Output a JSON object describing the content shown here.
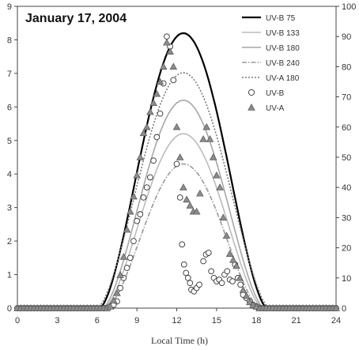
{
  "chart_data": {
    "type": "line",
    "title": "January 17, 2004",
    "xlabel": "Local Time (h)",
    "ylabel": "",
    "xlim": [
      0,
      24
    ],
    "ylim_left": [
      0,
      9
    ],
    "ylim_right": [
      0,
      100
    ],
    "xticks": [
      "0",
      "3",
      "6",
      "9",
      "12",
      "15",
      "18",
      "21",
      "24"
    ],
    "yticks_left": [
      "0",
      "1",
      "2",
      "3",
      "4",
      "5",
      "6",
      "7",
      "8",
      "9"
    ],
    "yticks_right": [
      "0",
      "10",
      "20",
      "30",
      "40",
      "50",
      "60",
      "70",
      "80",
      "90",
      "100"
    ],
    "grid": false,
    "legend_position": "top-right",
    "series": [
      {
        "name": "UV-B 75",
        "kind": "line",
        "axis": "left",
        "style": "solid",
        "color": "#000000",
        "peak": 8.2,
        "center": 12.5,
        "start": 6.2,
        "end": 18.8
      },
      {
        "name": "UV-B 133",
        "kind": "line",
        "axis": "left",
        "style": "solid",
        "color": "#bbbbbb",
        "peak": 5.2,
        "center": 12.5,
        "start": 6.5,
        "end": 18.5
      },
      {
        "name": "UV-B 180",
        "kind": "line",
        "axis": "left",
        "style": "solid",
        "color": "#a6a6a6",
        "peak": 6.2,
        "center": 12.5,
        "start": 6.4,
        "end": 18.6
      },
      {
        "name": "UV-B 240",
        "kind": "line",
        "axis": "left",
        "style": "dashdot",
        "color": "#999999",
        "peak": 4.3,
        "center": 12.5,
        "start": 6.7,
        "end": 18.3
      },
      {
        "name": "UV-A 180",
        "kind": "line",
        "axis": "right",
        "style": "dotted",
        "color": "#7a7a7a",
        "peak": 78,
        "center": 12.5,
        "start": 6.0,
        "end": 19.0
      },
      {
        "name": "UV-B",
        "kind": "scatter",
        "axis": "left",
        "marker": "circle",
        "points": [
          [
            0,
            0
          ],
          [
            0.25,
            0
          ],
          [
            0.5,
            0
          ],
          [
            0.75,
            0
          ],
          [
            1,
            0
          ],
          [
            1.25,
            0
          ],
          [
            1.5,
            0
          ],
          [
            1.75,
            0
          ],
          [
            2,
            0
          ],
          [
            2.25,
            0
          ],
          [
            2.5,
            0
          ],
          [
            2.75,
            0
          ],
          [
            3,
            0
          ],
          [
            3.25,
            0
          ],
          [
            3.5,
            0
          ],
          [
            3.75,
            0
          ],
          [
            4,
            0
          ],
          [
            4.25,
            0
          ],
          [
            4.5,
            0
          ],
          [
            4.75,
            0
          ],
          [
            5,
            0
          ],
          [
            5.25,
            0
          ],
          [
            5.5,
            0
          ],
          [
            5.75,
            0
          ],
          [
            6,
            0
          ],
          [
            6.25,
            0
          ],
          [
            6.5,
            0
          ],
          [
            6.75,
            0
          ],
          [
            7,
            0.05
          ],
          [
            7.25,
            0.1
          ],
          [
            7.5,
            0.2
          ],
          [
            7.75,
            0.6
          ],
          [
            8,
            0.9
          ],
          [
            8.25,
            1.2
          ],
          [
            8.5,
            1.5
          ],
          [
            8.75,
            2.0
          ],
          [
            9,
            2.6
          ],
          [
            9.25,
            2.8
          ],
          [
            9.5,
            3.3
          ],
          [
            9.75,
            3.6
          ],
          [
            10,
            3.9
          ],
          [
            10.25,
            4.4
          ],
          [
            10.5,
            5.1
          ],
          [
            10.75,
            5.8
          ],
          [
            11,
            6.7
          ],
          [
            11.25,
            8.1
          ],
          [
            11.5,
            7.8
          ],
          [
            11.75,
            6.8
          ],
          [
            12,
            4.3
          ],
          [
            12.25,
            3.3
          ],
          [
            12.4,
            1.9
          ],
          [
            12.55,
            1.3
          ],
          [
            12.7,
            1.05
          ],
          [
            12.85,
            0.9
          ],
          [
            13,
            0.75
          ],
          [
            13.1,
            0.55
          ],
          [
            13.3,
            0.5
          ],
          [
            13.5,
            0.6
          ],
          [
            13.7,
            0.7
          ],
          [
            14.0,
            1.4
          ],
          [
            14.2,
            1.6
          ],
          [
            14.4,
            1.65
          ],
          [
            14.6,
            1.1
          ],
          [
            14.8,
            0.9
          ],
          [
            15.0,
            0.8
          ],
          [
            15.2,
            0.85
          ],
          [
            15.4,
            0.75
          ],
          [
            15.6,
            1.0
          ],
          [
            15.8,
            1.1
          ],
          [
            16.0,
            0.85
          ],
          [
            16.2,
            0.8
          ],
          [
            16.4,
            1.3
          ],
          [
            16.6,
            0.9
          ],
          [
            16.8,
            0.7
          ],
          [
            17.0,
            0.4
          ],
          [
            17.25,
            0.3
          ],
          [
            17.5,
            0.2
          ],
          [
            17.75,
            0.1
          ],
          [
            18,
            0.05
          ],
          [
            18.25,
            0
          ],
          [
            18.5,
            0
          ],
          [
            18.75,
            0
          ],
          [
            19,
            0
          ],
          [
            19.25,
            0
          ],
          [
            19.5,
            0
          ],
          [
            19.75,
            0
          ],
          [
            20,
            0
          ],
          [
            20.25,
            0
          ],
          [
            20.5,
            0
          ],
          [
            20.75,
            0
          ],
          [
            21,
            0
          ],
          [
            21.25,
            0
          ],
          [
            21.5,
            0
          ],
          [
            21.75,
            0
          ],
          [
            22,
            0
          ],
          [
            22.25,
            0
          ],
          [
            22.5,
            0
          ],
          [
            22.75,
            0
          ],
          [
            23,
            0
          ],
          [
            23.25,
            0
          ],
          [
            23.5,
            0
          ],
          [
            23.75,
            0
          ],
          [
            24,
            0
          ]
        ]
      },
      {
        "name": "UV-A",
        "kind": "scatter",
        "axis": "right",
        "marker": "triangle",
        "points": [
          [
            0,
            0
          ],
          [
            0.25,
            0
          ],
          [
            0.5,
            0
          ],
          [
            0.75,
            0
          ],
          [
            1,
            0
          ],
          [
            1.25,
            0
          ],
          [
            1.5,
            0
          ],
          [
            1.75,
            0
          ],
          [
            2,
            0
          ],
          [
            2.25,
            0
          ],
          [
            2.5,
            0
          ],
          [
            2.75,
            0
          ],
          [
            3,
            0
          ],
          [
            3.25,
            0
          ],
          [
            3.5,
            0
          ],
          [
            3.75,
            0
          ],
          [
            4,
            0
          ],
          [
            4.25,
            0
          ],
          [
            4.5,
            0
          ],
          [
            4.75,
            0
          ],
          [
            5,
            0
          ],
          [
            5.25,
            0
          ],
          [
            5.5,
            0
          ],
          [
            5.75,
            0
          ],
          [
            6,
            0
          ],
          [
            6.25,
            0
          ],
          [
            6.5,
            0
          ],
          [
            6.75,
            0
          ],
          [
            7,
            0.5
          ],
          [
            7.25,
            2.5
          ],
          [
            7.5,
            5
          ],
          [
            7.75,
            11
          ],
          [
            8,
            17
          ],
          [
            8.25,
            26
          ],
          [
            8.5,
            32
          ],
          [
            8.75,
            37
          ],
          [
            9,
            44
          ],
          [
            9.25,
            50
          ],
          [
            9.5,
            58
          ],
          [
            9.75,
            60
          ],
          [
            10,
            65
          ],
          [
            10.25,
            68
          ],
          [
            10.5,
            71
          ],
          [
            10.75,
            75
          ],
          [
            11,
            80
          ],
          [
            11.25,
            88
          ],
          [
            11.5,
            85
          ],
          [
            11.75,
            80
          ],
          [
            12,
            60
          ],
          [
            12.25,
            50
          ],
          [
            12.5,
            40
          ],
          [
            12.75,
            36
          ],
          [
            13,
            34
          ],
          [
            13.25,
            32
          ],
          [
            13.5,
            32
          ],
          [
            13.75,
            38
          ],
          [
            14,
            56
          ],
          [
            14.25,
            60
          ],
          [
            14.5,
            56
          ],
          [
            14.75,
            50
          ],
          [
            15,
            44
          ],
          [
            15.25,
            40
          ],
          [
            15.5,
            30
          ],
          [
            15.75,
            24
          ],
          [
            16,
            18
          ],
          [
            16.25,
            16
          ],
          [
            16.5,
            14
          ],
          [
            16.75,
            10
          ],
          [
            17,
            6
          ],
          [
            17.25,
            4
          ],
          [
            17.5,
            2
          ],
          [
            17.75,
            1
          ],
          [
            18,
            0.5
          ],
          [
            18.25,
            0
          ],
          [
            18.5,
            0
          ],
          [
            18.75,
            0
          ],
          [
            19,
            0
          ],
          [
            19.25,
            0
          ],
          [
            19.5,
            0
          ],
          [
            19.75,
            0
          ],
          [
            20,
            0
          ],
          [
            20.25,
            0
          ],
          [
            20.5,
            0
          ],
          [
            20.75,
            0
          ],
          [
            21,
            0
          ],
          [
            21.25,
            0
          ],
          [
            21.5,
            0
          ],
          [
            21.75,
            0
          ],
          [
            22,
            0
          ],
          [
            22.25,
            0
          ],
          [
            22.5,
            0
          ],
          [
            22.75,
            0
          ],
          [
            23,
            0
          ],
          [
            23.25,
            0
          ],
          [
            23.5,
            0
          ],
          [
            23.75,
            0
          ],
          [
            24,
            0
          ]
        ]
      }
    ]
  }
}
